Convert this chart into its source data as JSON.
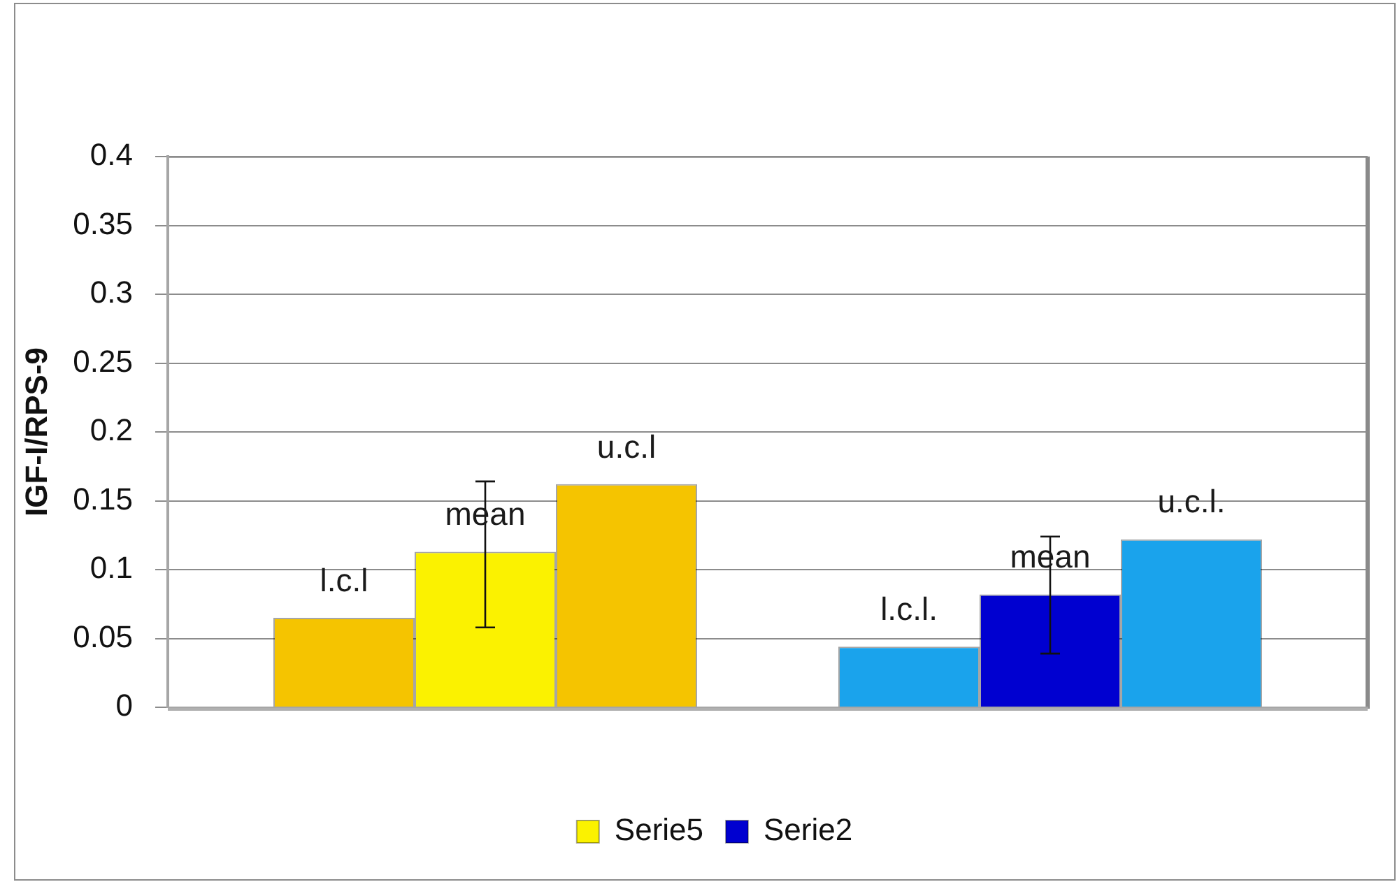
{
  "chart_data": {
    "type": "bar",
    "ylabel": "IGF-I/RPS-9",
    "categories": [
      null,
      null
    ],
    "series": [
      {
        "colors": [
          "#f5c400",
          "#1aa3ec"
        ],
        "values": [
          0.065,
          0.044
        ],
        "value_labels": [
          "l.c.l",
          "l.c.l."
        ]
      },
      {
        "name": "Serie5",
        "color": "#fbf200",
        "values": [
          0.113,
          null
        ],
        "errors": [
          [
            0.058,
            0.164
          ],
          null
        ],
        "value_labels": [
          "mean",
          null
        ]
      },
      {
        "name": "Serie2",
        "color": "#0000d0",
        "values": [
          null,
          0.082
        ],
        "errors": [
          null,
          [
            0.039,
            0.124
          ]
        ],
        "value_labels": [
          null,
          "mean"
        ]
      },
      {
        "colors": [
          "#f5c400",
          "#1aa3ec"
        ],
        "values": [
          0.162,
          0.122
        ],
        "value_labels": [
          "u.c.l",
          "u.c.l."
        ]
      }
    ],
    "ylim": [
      0,
      0.4
    ],
    "yticks": [
      0,
      0.05,
      0.1,
      0.15,
      0.2,
      0.25,
      0.3,
      0.35,
      0.4
    ],
    "grid": "y",
    "legend": "bottom",
    "tick_labels": "y"
  }
}
